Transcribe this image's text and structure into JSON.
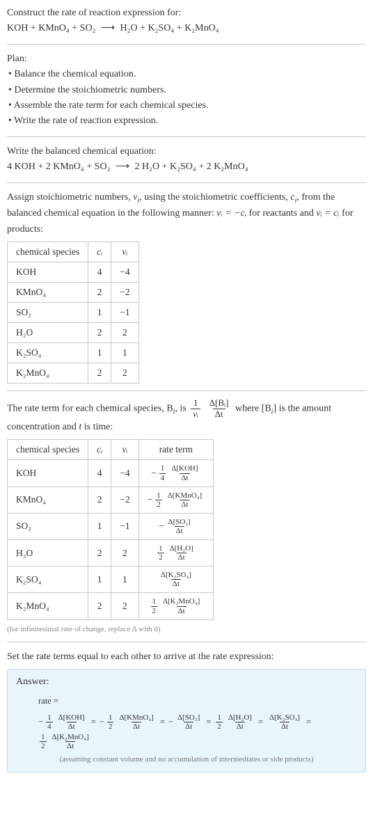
{
  "intro": {
    "title": "Construct the rate of reaction expression for:",
    "equation_lhs": "KOH + KMnO₄ + SO₂",
    "arrow": "⟶",
    "equation_rhs": "H₂O + K₂SO₄ + K₂MnO₄"
  },
  "plan": {
    "title": "Plan:",
    "items": [
      "• Balance the chemical equation.",
      "• Determine the stoichiometric numbers.",
      "• Assemble the rate term for each chemical species.",
      "• Write the rate of reaction expression."
    ]
  },
  "balanced": {
    "title": "Write the balanced chemical equation:",
    "equation_lhs": "4 KOH + 2 KMnO₄ + SO₂",
    "arrow": "⟶",
    "equation_rhs": "2 H₂O + K₂SO₄ + 2 K₂MnO₄"
  },
  "assign": {
    "text_pre": "Assign stoichiometric numbers, ",
    "nu": "ν",
    "sub_i": "i",
    "text_mid1": ", using the stoichiometric coefficients, ",
    "c": "c",
    "text_mid2": ", from the balanced chemical equation in the following manner: ",
    "rel1": "νᵢ = −cᵢ",
    "text_mid3": " for reactants and ",
    "rel2": "νᵢ = cᵢ",
    "text_mid4": " for products:"
  },
  "table1": {
    "headers": {
      "species": "chemical species",
      "ci": "cᵢ",
      "nui": "νᵢ"
    },
    "rows": [
      {
        "species": "KOH",
        "ci": "4",
        "nui": "−4"
      },
      {
        "species": "KMnO₄",
        "ci": "2",
        "nui": "−2"
      },
      {
        "species": "SO₂",
        "ci": "1",
        "nui": "−1"
      },
      {
        "species": "H₂O",
        "ci": "2",
        "nui": "2"
      },
      {
        "species": "K₂SO₄",
        "ci": "1",
        "nui": "1"
      },
      {
        "species": "K₂MnO₄",
        "ci": "2",
        "nui": "2"
      }
    ]
  },
  "rateterm": {
    "pre": "The rate term for each chemical species, B",
    "sub_i": "i",
    "mid1": ", is ",
    "frac1_num": "1",
    "frac1_den": "νᵢ",
    "frac2_num": "Δ[Bᵢ]",
    "frac2_den": "Δt",
    "mid2": " where [B",
    "mid3": "] is the amount concentration and ",
    "t": "t",
    "mid4": " is time:"
  },
  "table2": {
    "headers": {
      "species": "chemical species",
      "ci": "cᵢ",
      "nui": "νᵢ",
      "rate": "rate term"
    },
    "rows": [
      {
        "species": "KOH",
        "ci": "4",
        "nui": "−4",
        "sign": "−",
        "fnum": "1",
        "fden": "4",
        "dnum": "Δ[KOH]",
        "dden": "Δt"
      },
      {
        "species": "KMnO₄",
        "ci": "2",
        "nui": "−2",
        "sign": "−",
        "fnum": "1",
        "fden": "2",
        "dnum": "Δ[KMnO₄]",
        "dden": "Δt"
      },
      {
        "species": "SO₂",
        "ci": "1",
        "nui": "−1",
        "sign": "−",
        "fnum": "",
        "fden": "",
        "dnum": "Δ[SO₂]",
        "dden": "Δt"
      },
      {
        "species": "H₂O",
        "ci": "2",
        "nui": "2",
        "sign": "",
        "fnum": "1",
        "fden": "2",
        "dnum": "Δ[H₂O]",
        "dden": "Δt"
      },
      {
        "species": "K₂SO₄",
        "ci": "1",
        "nui": "1",
        "sign": "",
        "fnum": "",
        "fden": "",
        "dnum": "Δ[K₂SO₄]",
        "dden": "Δt"
      },
      {
        "species": "K₂MnO₄",
        "ci": "2",
        "nui": "2",
        "sign": "",
        "fnum": "1",
        "fden": "2",
        "dnum": "Δ[K₂MnO₄]",
        "dden": "Δt"
      }
    ],
    "note": "(for infinitesimal rate of change, replace Δ with d)"
  },
  "setline": "Set the rate terms equal to each other to arrive at the rate expression:",
  "answer": {
    "title": "Answer:",
    "rate_label": "rate =",
    "eq": "=",
    "terms": [
      {
        "sign": "−",
        "fnum": "1",
        "fden": "4",
        "dnum": "Δ[KOH]",
        "dden": "Δt"
      },
      {
        "sign": "−",
        "fnum": "1",
        "fden": "2",
        "dnum": "Δ[KMnO₄]",
        "dden": "Δt"
      },
      {
        "sign": "−",
        "fnum": "",
        "fden": "",
        "dnum": "Δ[SO₂]",
        "dden": "Δt"
      },
      {
        "sign": "",
        "fnum": "1",
        "fden": "2",
        "dnum": "Δ[H₂O]",
        "dden": "Δt"
      },
      {
        "sign": "",
        "fnum": "",
        "fden": "",
        "dnum": "Δ[K₂SO₄]",
        "dden": "Δt"
      },
      {
        "sign": "",
        "fnum": "1",
        "fden": "2",
        "dnum": "Δ[K₂MnO₄]",
        "dden": "Δt"
      }
    ],
    "note": "(assuming constant volume and no accumulation of intermediates or side products)"
  },
  "colors": {
    "text": "#333333",
    "border": "#c8c8c8",
    "answer_bg": "#eaf5fb",
    "answer_border": "#bddceb",
    "note": "#888888"
  }
}
